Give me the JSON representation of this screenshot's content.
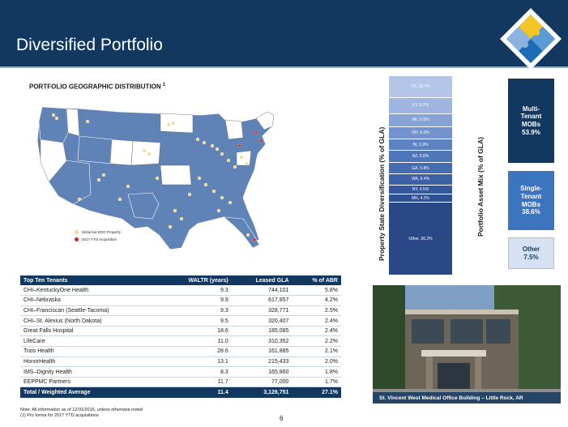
{
  "header": {
    "title": "Diversified Portfolio"
  },
  "map": {
    "title": "PORTFOLIO GEOGRAPHIC DISTRIBUTION",
    "footnote_mark": "1",
    "legend": [
      {
        "label": "Historical DOC Property",
        "color": "#f3d88a"
      },
      {
        "label": "2017 YTD Acquisition",
        "color": "#d0202e"
      }
    ]
  },
  "tenants_table": {
    "headers": [
      "Top Ten Tenants",
      "WALTR (years)",
      "Leased GLA",
      "% of ABR"
    ],
    "rows": [
      [
        "CHI–KentuckyOne Health",
        "9.3",
        "744,101",
        "5.8%"
      ],
      [
        "CHI–Nebraska",
        "9.9",
        "617,857",
        "4.2%"
      ],
      [
        "CHI–Franciscan (Seattle-Tacoma)",
        "9.3",
        "328,771",
        "2.5%"
      ],
      [
        "CHI–St. Alexius (North Dakota)",
        "9.5",
        "320,407",
        "2.4%"
      ],
      [
        "Great Falls Hospital",
        "18.6",
        "185,085",
        "2.4%"
      ],
      [
        "LifeCare",
        "11.0",
        "310,352",
        "2.2%"
      ],
      [
        "Trios Health",
        "28.6",
        "161,885",
        "2.1%"
      ],
      [
        "HonorHealth",
        "13.1",
        "215,433",
        "2.0%"
      ],
      [
        "IMS–Dignity Health",
        "8.3",
        "165,860",
        "1.8%"
      ],
      [
        "EEPPMC Partners",
        "11.7",
        "77,000",
        "1.7%"
      ]
    ],
    "total": [
      "Total / Weighted Average",
      "11.4",
      "3,126,751",
      "27.1%"
    ]
  },
  "state_diversification": {
    "label": "Property State Diversification (% of GLA)",
    "segments": [
      {
        "label": "TX, 10.7%",
        "value": 10.7,
        "color": "#b4c6e7"
      },
      {
        "label": "KY, 8.2%",
        "value": 8.2,
        "color": "#9db5df"
      },
      {
        "label": "NE, 6.5%",
        "value": 6.5,
        "color": "#86a3d6"
      },
      {
        "label": "OH, 6.0%",
        "value": 6.0,
        "color": "#7293cd"
      },
      {
        "label": "IN, 5.9%",
        "value": 5.9,
        "color": "#5e83c3"
      },
      {
        "label": "AZ, 5.8%",
        "value": 5.8,
        "color": "#5076ba"
      },
      {
        "label": "GA, 5.8%",
        "value": 5.8,
        "color": "#456bb0"
      },
      {
        "label": "WA, 5.4%",
        "value": 5.4,
        "color": "#3c61a6"
      },
      {
        "label": "NY, 4.5%",
        "value": 4.5,
        "color": "#35589c"
      },
      {
        "label": "MN, 4.2%",
        "value": 4.2,
        "color": "#2f5092"
      },
      {
        "label": "Other, 36.2%",
        "value": 36.2,
        "color": "#2a4886"
      }
    ]
  },
  "asset_mix": {
    "label": "Portfolio Asset Mix (% of GLA)",
    "segments": [
      {
        "label": "Multi-\nTenant\nMOBs\n53.9%",
        "value": 53.9,
        "color": "#12385f",
        "text_color": "#ffffff"
      },
      {
        "label": "Single-\nTenant\nMOBs\n38.6%",
        "value": 38.6,
        "color": "#3c74c0",
        "text_color": "#ffffff"
      },
      {
        "label": "Other\n7.5%",
        "value": 7.5,
        "color": "#d6e2f2",
        "text_color": "#12385f"
      }
    ]
  },
  "photo": {
    "caption": "St. Vincent West Medical Office Building – Little Rock, AR"
  },
  "footer": {
    "note1": "Note: All information as of 12/31/2016, unless otherwise noted",
    "note2": "(1)    Pro forma for 2017 YTD acquisitions",
    "page": "6"
  }
}
